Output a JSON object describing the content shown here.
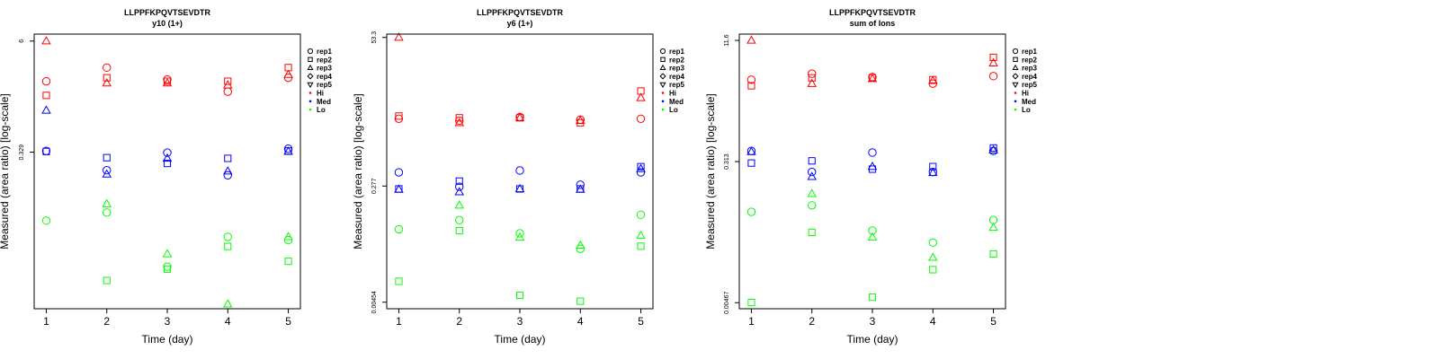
{
  "colors": {
    "Hi": "#ff0000",
    "Med": "#0000ff",
    "Lo": "#00ff00",
    "axis": "#000000"
  },
  "legend": {
    "reps": [
      {
        "label": "rep1",
        "shape": "circle"
      },
      {
        "label": "rep2",
        "shape": "square"
      },
      {
        "label": "rep3",
        "shape": "triangle"
      },
      {
        "label": "rep4",
        "shape": "diamond"
      },
      {
        "label": "rep5",
        "shape": "triangle-down"
      }
    ],
    "levels": [
      {
        "label": "Hi",
        "color": "#ff0000"
      },
      {
        "label": "Med",
        "color": "#0000ff"
      },
      {
        "label": "Lo",
        "color": "#00ff00"
      }
    ]
  },
  "chart_data": [
    {
      "type": "scatter",
      "title": "LLPPFKPQVTSEVDTR",
      "subtitle": "y10 (1+)",
      "xlabel": "Time (day)",
      "ylabel": "Measured (area ratio) [log-scale]",
      "xlim": [
        0.8,
        5.2
      ],
      "x_ticks": [
        "1",
        "2",
        "3",
        "4",
        "5"
      ],
      "ylim": [
        0.0055,
        7.2
      ],
      "yscale": "log",
      "y_ticks": [
        {
          "value": 6,
          "label": "6"
        },
        {
          "value": 0.329,
          "label": "0.329"
        }
      ],
      "points": [
        {
          "x": 1,
          "y": 6.0,
          "rep": "rep3",
          "level": "Hi"
        },
        {
          "x": 1,
          "y": 1.45,
          "rep": "rep2",
          "level": "Hi"
        },
        {
          "x": 1,
          "y": 2.1,
          "rep": "rep1",
          "level": "Hi"
        },
        {
          "x": 1,
          "y": 0.98,
          "rep": "rep3",
          "level": "Med"
        },
        {
          "x": 1,
          "y": 0.34,
          "rep": "rep1",
          "level": "Med"
        },
        {
          "x": 1,
          "y": 0.335,
          "rep": "rep2",
          "level": "Med"
        },
        {
          "x": 1,
          "y": 0.055,
          "rep": "rep1",
          "level": "Lo"
        },
        {
          "x": 2,
          "y": 3.0,
          "rep": "rep1",
          "level": "Hi"
        },
        {
          "x": 2,
          "y": 2.3,
          "rep": "rep2",
          "level": "Hi"
        },
        {
          "x": 2,
          "y": 2.0,
          "rep": "rep3",
          "level": "Hi"
        },
        {
          "x": 2,
          "y": 0.285,
          "rep": "rep2",
          "level": "Med"
        },
        {
          "x": 2,
          "y": 0.205,
          "rep": "rep1",
          "level": "Med"
        },
        {
          "x": 2,
          "y": 0.185,
          "rep": "rep3",
          "level": "Med"
        },
        {
          "x": 2,
          "y": 0.085,
          "rep": "rep3",
          "level": "Lo"
        },
        {
          "x": 2,
          "y": 0.068,
          "rep": "rep1",
          "level": "Lo"
        },
        {
          "x": 2,
          "y": 0.0115,
          "rep": "rep2",
          "level": "Lo"
        },
        {
          "x": 3,
          "y": 2.2,
          "rep": "rep1",
          "level": "Hi"
        },
        {
          "x": 3,
          "y": 2.1,
          "rep": "rep2",
          "level": "Hi"
        },
        {
          "x": 3,
          "y": 2.0,
          "rep": "rep3",
          "level": "Hi"
        },
        {
          "x": 3,
          "y": 0.325,
          "rep": "rep1",
          "level": "Med"
        },
        {
          "x": 3,
          "y": 0.28,
          "rep": "rep3",
          "level": "Med"
        },
        {
          "x": 3,
          "y": 0.245,
          "rep": "rep2",
          "level": "Med"
        },
        {
          "x": 3,
          "y": 0.023,
          "rep": "rep3",
          "level": "Lo"
        },
        {
          "x": 3,
          "y": 0.0165,
          "rep": "rep1",
          "level": "Lo"
        },
        {
          "x": 3,
          "y": 0.0155,
          "rep": "rep2",
          "level": "Lo"
        },
        {
          "x": 4,
          "y": 2.1,
          "rep": "rep2",
          "level": "Hi"
        },
        {
          "x": 4,
          "y": 1.9,
          "rep": "rep3",
          "level": "Hi"
        },
        {
          "x": 4,
          "y": 1.6,
          "rep": "rep1",
          "level": "Hi"
        },
        {
          "x": 4,
          "y": 0.28,
          "rep": "rep2",
          "level": "Med"
        },
        {
          "x": 4,
          "y": 0.2,
          "rep": "rep3",
          "level": "Med"
        },
        {
          "x": 4,
          "y": 0.18,
          "rep": "rep1",
          "level": "Med"
        },
        {
          "x": 4,
          "y": 0.036,
          "rep": "rep1",
          "level": "Lo"
        },
        {
          "x": 4,
          "y": 0.028,
          "rep": "rep2",
          "level": "Lo"
        },
        {
          "x": 4,
          "y": 0.0062,
          "rep": "rep3",
          "level": "Lo"
        },
        {
          "x": 5,
          "y": 3.0,
          "rep": "rep2",
          "level": "Hi"
        },
        {
          "x": 5,
          "y": 2.5,
          "rep": "rep3",
          "level": "Hi"
        },
        {
          "x": 5,
          "y": 2.3,
          "rep": "rep1",
          "level": "Hi"
        },
        {
          "x": 5,
          "y": 0.36,
          "rep": "rep1",
          "level": "Med"
        },
        {
          "x": 5,
          "y": 0.34,
          "rep": "rep2",
          "level": "Med"
        },
        {
          "x": 5,
          "y": 0.335,
          "rep": "rep3",
          "level": "Med"
        },
        {
          "x": 5,
          "y": 0.036,
          "rep": "rep3",
          "level": "Lo"
        },
        {
          "x": 5,
          "y": 0.033,
          "rep": "rep1",
          "level": "Lo"
        },
        {
          "x": 5,
          "y": 0.019,
          "rep": "rep2",
          "level": "Lo"
        }
      ]
    },
    {
      "type": "scatter",
      "title": "LLPPFKPQVTSEVDTR",
      "subtitle": "y6 (1+)",
      "xlabel": "Time (day)",
      "ylabel": "Measured (area ratio) [log-scale]",
      "xlim": [
        0.8,
        5.2
      ],
      "x_ticks": [
        "1",
        "2",
        "3",
        "4",
        "5"
      ],
      "ylim": [
        0.0036,
        60
      ],
      "yscale": "log",
      "y_ticks": [
        {
          "value": 53.3,
          "label": "53.3"
        },
        {
          "value": 0.277,
          "label": "0.277"
        },
        {
          "value": 0.00454,
          "label": "0.00454"
        }
      ],
      "points": [
        {
          "x": 1,
          "y": 53.3,
          "rep": "rep3",
          "level": "Hi"
        },
        {
          "x": 1,
          "y": 3.3,
          "rep": "rep2",
          "level": "Hi"
        },
        {
          "x": 1,
          "y": 3.0,
          "rep": "rep1",
          "level": "Hi"
        },
        {
          "x": 1,
          "y": 0.45,
          "rep": "rep1",
          "level": "Med"
        },
        {
          "x": 1,
          "y": 0.25,
          "rep": "rep2",
          "level": "Med"
        },
        {
          "x": 1,
          "y": 0.245,
          "rep": "rep3",
          "level": "Med"
        },
        {
          "x": 1,
          "y": 0.06,
          "rep": "rep1",
          "level": "Lo"
        },
        {
          "x": 1,
          "y": 0.0095,
          "rep": "rep2",
          "level": "Lo"
        },
        {
          "x": 2,
          "y": 3.1,
          "rep": "rep2",
          "level": "Hi"
        },
        {
          "x": 2,
          "y": 2.8,
          "rep": "rep1",
          "level": "Hi"
        },
        {
          "x": 2,
          "y": 2.6,
          "rep": "rep3",
          "level": "Hi"
        },
        {
          "x": 2,
          "y": 0.33,
          "rep": "rep2",
          "level": "Med"
        },
        {
          "x": 2,
          "y": 0.27,
          "rep": "rep1",
          "level": "Med"
        },
        {
          "x": 2,
          "y": 0.225,
          "rep": "rep3",
          "level": "Med"
        },
        {
          "x": 2,
          "y": 0.14,
          "rep": "rep3",
          "level": "Lo"
        },
        {
          "x": 2,
          "y": 0.083,
          "rep": "rep1",
          "level": "Lo"
        },
        {
          "x": 2,
          "y": 0.057,
          "rep": "rep2",
          "level": "Lo"
        },
        {
          "x": 3,
          "y": 3.2,
          "rep": "rep1",
          "level": "Hi"
        },
        {
          "x": 3,
          "y": 3.1,
          "rep": "rep2",
          "level": "Hi"
        },
        {
          "x": 3,
          "y": 3.1,
          "rep": "rep3",
          "level": "Hi"
        },
        {
          "x": 3,
          "y": 0.48,
          "rep": "rep1",
          "level": "Med"
        },
        {
          "x": 3,
          "y": 0.25,
          "rep": "rep2",
          "level": "Med"
        },
        {
          "x": 3,
          "y": 0.25,
          "rep": "rep3",
          "level": "Med"
        },
        {
          "x": 3,
          "y": 0.052,
          "rep": "rep1",
          "level": "Lo"
        },
        {
          "x": 3,
          "y": 0.045,
          "rep": "rep3",
          "level": "Lo"
        },
        {
          "x": 3,
          "y": 0.0058,
          "rep": "rep2",
          "level": "Lo"
        },
        {
          "x": 4,
          "y": 2.9,
          "rep": "rep1",
          "level": "Hi"
        },
        {
          "x": 4,
          "y": 2.8,
          "rep": "rep3",
          "level": "Hi"
        },
        {
          "x": 4,
          "y": 2.6,
          "rep": "rep2",
          "level": "Hi"
        },
        {
          "x": 4,
          "y": 0.29,
          "rep": "rep1",
          "level": "Med"
        },
        {
          "x": 4,
          "y": 0.25,
          "rep": "rep2",
          "level": "Med"
        },
        {
          "x": 4,
          "y": 0.245,
          "rep": "rep3",
          "level": "Med"
        },
        {
          "x": 4,
          "y": 0.034,
          "rep": "rep3",
          "level": "Lo"
        },
        {
          "x": 4,
          "y": 0.03,
          "rep": "rep1",
          "level": "Lo"
        },
        {
          "x": 4,
          "y": 0.0047,
          "rep": "rep2",
          "level": "Lo"
        },
        {
          "x": 5,
          "y": 8.0,
          "rep": "rep2",
          "level": "Hi"
        },
        {
          "x": 5,
          "y": 6.3,
          "rep": "rep3",
          "level": "Hi"
        },
        {
          "x": 5,
          "y": 3.0,
          "rep": "rep1",
          "level": "Hi"
        },
        {
          "x": 5,
          "y": 0.55,
          "rep": "rep2",
          "level": "Med"
        },
        {
          "x": 5,
          "y": 0.51,
          "rep": "rep3",
          "level": "Med"
        },
        {
          "x": 5,
          "y": 0.45,
          "rep": "rep1",
          "level": "Med"
        },
        {
          "x": 5,
          "y": 0.1,
          "rep": "rep1",
          "level": "Lo"
        },
        {
          "x": 5,
          "y": 0.048,
          "rep": "rep3",
          "level": "Lo"
        },
        {
          "x": 5,
          "y": 0.033,
          "rep": "rep2",
          "level": "Lo"
        }
      ]
    },
    {
      "type": "scatter",
      "title": "LLPPFKPQVTSEVDTR",
      "subtitle": "sum of Ions",
      "xlabel": "Time (day)",
      "ylabel": "Measured (area ratio) [log-scale]",
      "xlim": [
        0.8,
        5.2
      ],
      "x_ticks": [
        "1",
        "2",
        "3",
        "4",
        "5"
      ],
      "ylim": [
        0.0039,
        14
      ],
      "yscale": "log",
      "y_ticks": [
        {
          "value": 11.6,
          "label": "11.6"
        },
        {
          "value": 0.313,
          "label": "0.313"
        },
        {
          "value": 0.00467,
          "label": "0.00467"
        }
      ],
      "points": [
        {
          "x": 1,
          "y": 11.6,
          "rep": "rep3",
          "level": "Hi"
        },
        {
          "x": 1,
          "y": 3.6,
          "rep": "rep1",
          "level": "Hi"
        },
        {
          "x": 1,
          "y": 3.0,
          "rep": "rep2",
          "level": "Hi"
        },
        {
          "x": 1,
          "y": 0.43,
          "rep": "rep1",
          "level": "Med"
        },
        {
          "x": 1,
          "y": 0.42,
          "rep": "rep3",
          "level": "Med"
        },
        {
          "x": 1,
          "y": 0.3,
          "rep": "rep2",
          "level": "Med"
        },
        {
          "x": 1,
          "y": 0.07,
          "rep": "rep1",
          "level": "Lo"
        },
        {
          "x": 1,
          "y": 0.0047,
          "rep": "rep2",
          "level": "Lo"
        },
        {
          "x": 2,
          "y": 4.3,
          "rep": "rep1",
          "level": "Hi"
        },
        {
          "x": 2,
          "y": 3.8,
          "rep": "rep2",
          "level": "Hi"
        },
        {
          "x": 2,
          "y": 3.2,
          "rep": "rep3",
          "level": "Hi"
        },
        {
          "x": 2,
          "y": 0.32,
          "rep": "rep2",
          "level": "Med"
        },
        {
          "x": 2,
          "y": 0.23,
          "rep": "rep1",
          "level": "Med"
        },
        {
          "x": 2,
          "y": 0.2,
          "rep": "rep3",
          "level": "Med"
        },
        {
          "x": 2,
          "y": 0.12,
          "rep": "rep3",
          "level": "Lo"
        },
        {
          "x": 2,
          "y": 0.085,
          "rep": "rep1",
          "level": "Lo"
        },
        {
          "x": 2,
          "y": 0.038,
          "rep": "rep2",
          "level": "Lo"
        },
        {
          "x": 3,
          "y": 3.9,
          "rep": "rep1",
          "level": "Hi"
        },
        {
          "x": 3,
          "y": 3.8,
          "rep": "rep2",
          "level": "Hi"
        },
        {
          "x": 3,
          "y": 3.7,
          "rep": "rep3",
          "level": "Hi"
        },
        {
          "x": 3,
          "y": 0.41,
          "rep": "rep1",
          "level": "Med"
        },
        {
          "x": 3,
          "y": 0.27,
          "rep": "rep3",
          "level": "Med"
        },
        {
          "x": 3,
          "y": 0.25,
          "rep": "rep2",
          "level": "Med"
        },
        {
          "x": 3,
          "y": 0.04,
          "rep": "rep1",
          "level": "Lo"
        },
        {
          "x": 3,
          "y": 0.033,
          "rep": "rep3",
          "level": "Lo"
        },
        {
          "x": 3,
          "y": 0.0055,
          "rep": "rep2",
          "level": "Lo"
        },
        {
          "x": 4,
          "y": 3.6,
          "rep": "rep2",
          "level": "Hi"
        },
        {
          "x": 4,
          "y": 3.5,
          "rep": "rep3",
          "level": "Hi"
        },
        {
          "x": 4,
          "y": 3.2,
          "rep": "rep1",
          "level": "Hi"
        },
        {
          "x": 4,
          "y": 0.27,
          "rep": "rep2",
          "level": "Med"
        },
        {
          "x": 4,
          "y": 0.23,
          "rep": "rep1",
          "level": "Med"
        },
        {
          "x": 4,
          "y": 0.225,
          "rep": "rep3",
          "level": "Med"
        },
        {
          "x": 4,
          "y": 0.028,
          "rep": "rep1",
          "level": "Lo"
        },
        {
          "x": 4,
          "y": 0.018,
          "rep": "rep3",
          "level": "Lo"
        },
        {
          "x": 4,
          "y": 0.0125,
          "rep": "rep2",
          "level": "Lo"
        },
        {
          "x": 5,
          "y": 7.0,
          "rep": "rep2",
          "level": "Hi"
        },
        {
          "x": 5,
          "y": 5.9,
          "rep": "rep3",
          "level": "Hi"
        },
        {
          "x": 5,
          "y": 4.0,
          "rep": "rep1",
          "level": "Hi"
        },
        {
          "x": 5,
          "y": 0.47,
          "rep": "rep2",
          "level": "Med"
        },
        {
          "x": 5,
          "y": 0.44,
          "rep": "rep3",
          "level": "Med"
        },
        {
          "x": 5,
          "y": 0.43,
          "rep": "rep1",
          "level": "Med"
        },
        {
          "x": 5,
          "y": 0.055,
          "rep": "rep1",
          "level": "Lo"
        },
        {
          "x": 5,
          "y": 0.044,
          "rep": "rep3",
          "level": "Lo"
        },
        {
          "x": 5,
          "y": 0.02,
          "rep": "rep2",
          "level": "Lo"
        }
      ]
    }
  ]
}
